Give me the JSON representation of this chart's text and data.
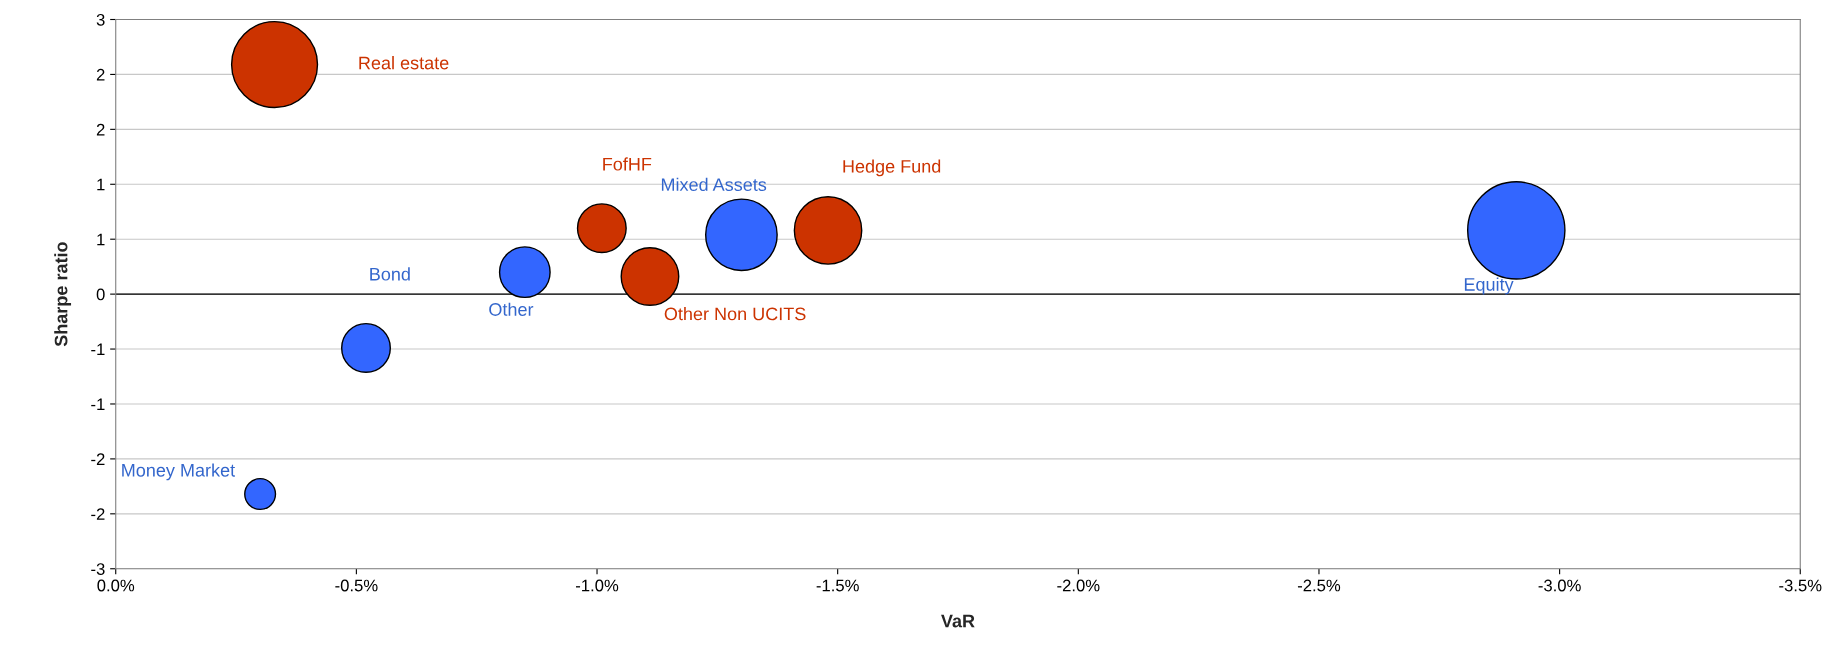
{
  "chart_data": {
    "type": "bubble",
    "xlabel": "VaR",
    "ylabel": "Sharpe ratio",
    "xlim": [
      0,
      -3.5
    ],
    "xticks": [
      {
        "value": 0,
        "label": "0.0%"
      },
      {
        "value": -0.5,
        "label": "-0.5%"
      },
      {
        "value": -1.0,
        "label": "-1.0%"
      },
      {
        "value": -1.5,
        "label": "-1.5%"
      },
      {
        "value": -2.0,
        "label": "-2.0%"
      },
      {
        "value": -2.5,
        "label": "-2.5%"
      },
      {
        "value": -3.0,
        "label": "-3.0%"
      },
      {
        "value": -3.5,
        "label": "-3.5%"
      }
    ],
    "ylim": [
      -2.5,
      2.5
    ],
    "yticks": [
      {
        "value": -2.5,
        "label": "-3"
      },
      {
        "value": -2.0,
        "label": "-2"
      },
      {
        "value": -1.5,
        "label": "-2"
      },
      {
        "value": -1.0,
        "label": "-1"
      },
      {
        "value": -0.5,
        "label": "-1"
      },
      0,
      {
        "value": 0.5,
        "label": "1"
      },
      {
        "value": 1.0,
        "label": "1"
      },
      {
        "value": 1.5,
        "label": "2"
      },
      {
        "value": 2.0,
        "label": "2"
      },
      {
        "value": 2.5,
        "label": "3"
      }
    ],
    "grid": "y",
    "legend": false,
    "ref_lines": [
      {
        "axis": "y",
        "value": 0,
        "color": "#000000"
      }
    ],
    "series": [
      {
        "name": "Real estate",
        "color": "#cc3300",
        "x": [
          -0.33
        ],
        "values": [
          2.09
        ],
        "sizes": [
          0.78
        ]
      },
      {
        "name": "Money Market",
        "color": "#3366ff",
        "x": [
          -0.3
        ],
        "values": [
          -1.82
        ],
        "sizes": [
          0.1
        ]
      },
      {
        "name": "Bond",
        "color": "#3366ff",
        "x": [
          -0.52
        ],
        "values": [
          -0.49
        ],
        "sizes": [
          0.25
        ]
      },
      {
        "name": "Other",
        "color": "#3366ff",
        "x": [
          -0.85
        ],
        "values": [
          0.2
        ],
        "sizes": [
          0.27
        ]
      },
      {
        "name": "FofHF",
        "color": "#cc3300",
        "x": [
          -1.01
        ],
        "values": [
          0.6
        ],
        "sizes": [
          0.25
        ]
      },
      {
        "name": "Other Non UCITS",
        "color": "#cc3300",
        "x": [
          -1.11
        ],
        "values": [
          0.16
        ],
        "sizes": [
          0.35
        ]
      },
      {
        "name": "Mixed Assets",
        "color": "#3366ff",
        "x": [
          -1.3
        ],
        "values": [
          0.54
        ],
        "sizes": [
          0.54
        ]
      },
      {
        "name": "Hedge Fund",
        "color": "#cc3300",
        "x": [
          -1.48
        ],
        "values": [
          0.58
        ],
        "sizes": [
          0.48
        ]
      },
      {
        "name": "Equity",
        "color": "#3366ff",
        "x": [
          -2.91
        ],
        "values": [
          0.58
        ],
        "sizes": [
          1.0
        ]
      }
    ]
  }
}
